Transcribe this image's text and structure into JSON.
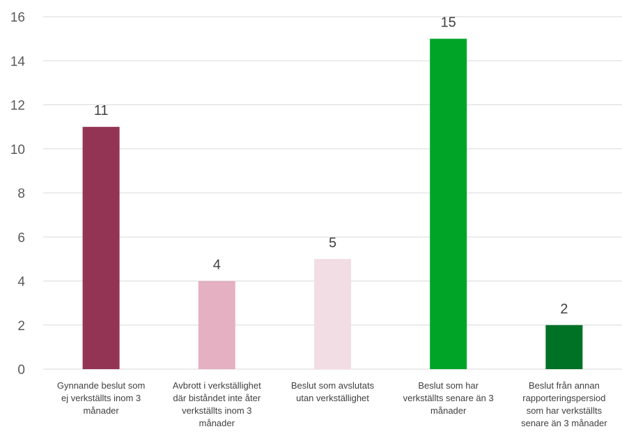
{
  "chart_data": {
    "type": "bar",
    "title": "",
    "xlabel": "",
    "ylabel": "",
    "ylim": [
      0,
      16
    ],
    "yticks": [
      0,
      2,
      4,
      6,
      8,
      10,
      12,
      14,
      16
    ],
    "grid": true,
    "categories": [
      [
        "Gynnande beslut som",
        "ej verkställts inom 3",
        "månader"
      ],
      [
        "Avbrott i verkställighet",
        "där biståndet inte åter",
        "verkställts inom 3",
        "månader"
      ],
      [
        "Beslut som avslutats",
        "utan verkställighet"
      ],
      [
        "Beslut som har",
        "verkställts senare än 3",
        "månader"
      ],
      [
        "Beslut från annan",
        "rapporteringspersiod",
        "som har verkställts",
        "senare än 3 månader"
      ]
    ],
    "values": [
      11,
      4,
      5,
      15,
      2
    ],
    "data_labels": [
      "11",
      "4",
      "5",
      "15",
      "2"
    ],
    "colors": [
      "#943455",
      "#e4b0c2",
      "#f3dde4",
      "#00a527",
      "#007226"
    ]
  }
}
